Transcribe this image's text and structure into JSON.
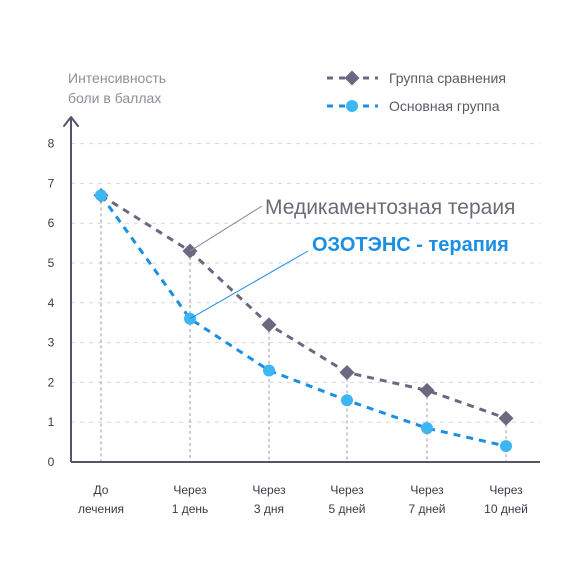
{
  "chart_data": {
    "type": "line",
    "ylabel": [
      "Интенсивность",
      "боли в баллах"
    ],
    "ylim": [
      0,
      8
    ],
    "yticks": [
      "0",
      "1",
      "2",
      "3",
      "4",
      "5",
      "6",
      "7",
      "8"
    ],
    "categories": [
      [
        "До",
        "лечения"
      ],
      [
        "Через",
        "1 день"
      ],
      [
        "Через",
        "3 дня"
      ],
      [
        "Через",
        "5 дней"
      ],
      [
        "Через",
        "7 дней"
      ],
      [
        "Через",
        "10 дней"
      ]
    ],
    "series": [
      {
        "name": "Группа сравнения",
        "color": "#6b6980",
        "marker": "diamond",
        "values": [
          6.7,
          5.3,
          3.45,
          2.25,
          1.8,
          1.1
        ]
      },
      {
        "name": "Основная группа",
        "color": "#1a8fe3",
        "marker": "circle",
        "marker_color": "#3db6f2",
        "values": [
          6.7,
          3.6,
          2.3,
          1.55,
          0.85,
          0.4
        ]
      }
    ],
    "annotations": [
      {
        "text": "Медикаментозная тераия",
        "series": 0,
        "point": 1
      },
      {
        "text": "ОЗОТЭНС - терапия",
        "series": 1,
        "point": 1
      }
    ],
    "legend": "top-right",
    "grid": true
  }
}
